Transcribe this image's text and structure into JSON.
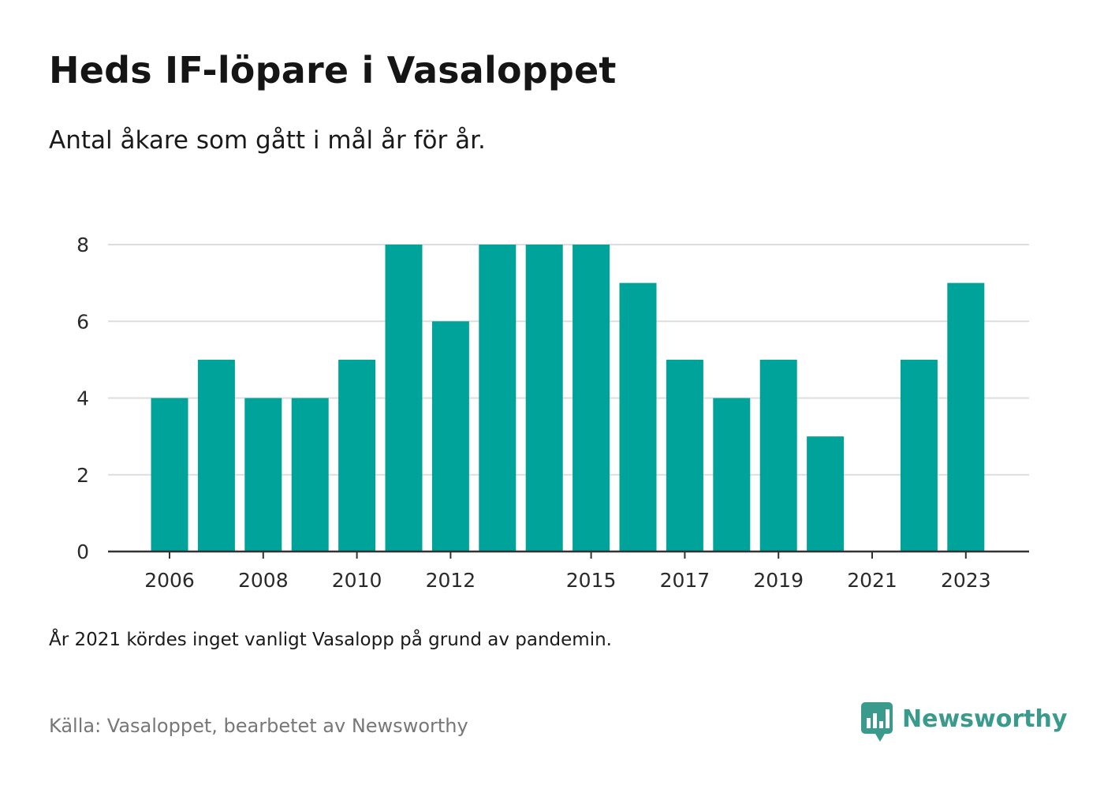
{
  "title": "Heds IF-löpare i Vasaloppet",
  "subtitle": "Antal åkare som gått i mål år för år.",
  "note": "År 2021 kördes inget vanligt Vasalopp på grund av pandemin.",
  "source": "Källa: Vasaloppet, bearbetet av Newsworthy",
  "brand": {
    "name": "Newsworthy",
    "logo_icon": "bar-chart-speech-bubble-icon",
    "color": "#3a9a8c"
  },
  "colors": {
    "bar": "#00a39a",
    "grid": "#dddddd",
    "axis": "#333333"
  },
  "chart_data": {
    "type": "bar",
    "title": "",
    "xlabel": "",
    "ylabel": "",
    "categories": [
      "2006",
      "2007",
      "2008",
      "2009",
      "2010",
      "2011",
      "2012",
      "2013",
      "2014",
      "2015",
      "2016",
      "2017",
      "2018",
      "2019",
      "2020",
      "2021",
      "2022",
      "2023"
    ],
    "values": [
      4,
      5,
      4,
      4,
      5,
      8,
      6,
      8,
      8,
      8,
      7,
      5,
      4,
      5,
      3,
      0,
      5,
      7
    ],
    "x_tick_labels": [
      "2006",
      "2008",
      "2010",
      "2012",
      "2015",
      "2017",
      "2019",
      "2021",
      "2023"
    ],
    "y_ticks": [
      "0",
      "2",
      "4",
      "6",
      "8"
    ],
    "ylim": [
      0,
      8
    ],
    "grid": true,
    "legend": "none"
  }
}
